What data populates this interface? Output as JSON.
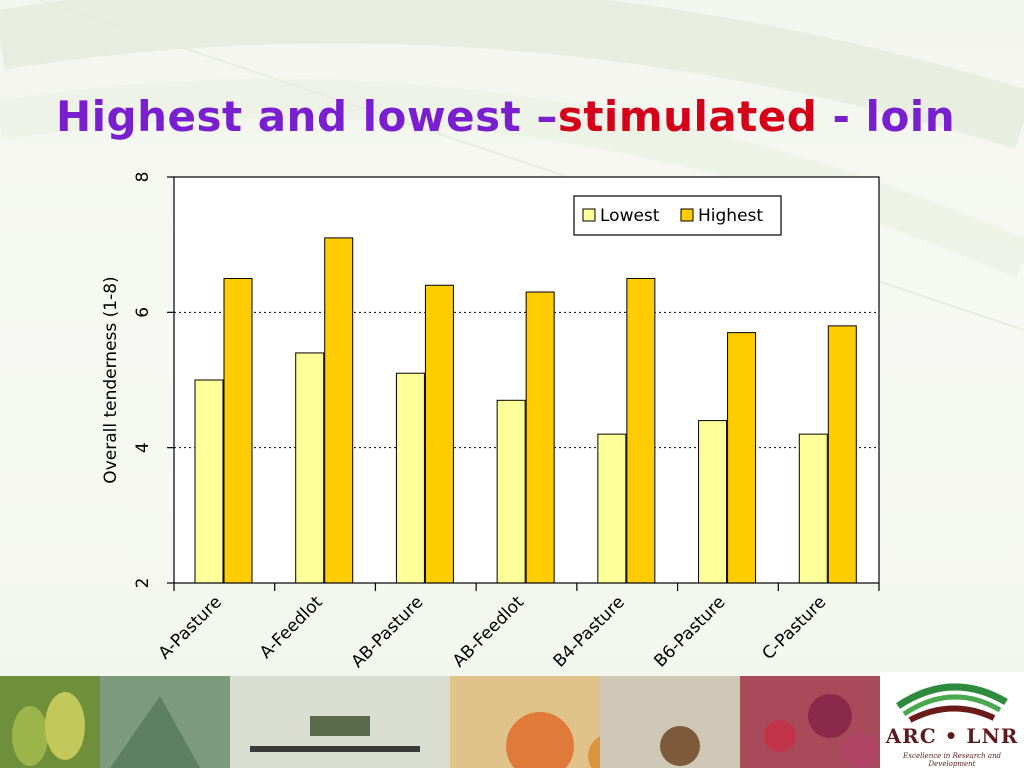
{
  "slide": {
    "title_part1": "Highest and lowest –",
    "title_part2": "stimulated",
    "title_part3": " - loin",
    "colors": {
      "title_purple": "#7a1fd0",
      "title_red": "#d4001a"
    }
  },
  "chart_data": {
    "type": "bar",
    "ylabel": "Overall tenderness (1-8)",
    "xlabel": "",
    "ylim": [
      2,
      8
    ],
    "yticks": [
      2,
      4,
      6,
      8
    ],
    "grid": "horizontal-dotted",
    "legend_position": "top-right",
    "categories": [
      "A-Pasture",
      "A-Feedlot",
      "AB-Pasture",
      "AB-Feedlot",
      "B4-Pasture",
      "B6-Pasture",
      "C-Pasture"
    ],
    "series": [
      {
        "name": "Lowest",
        "color": "#ffff99",
        "values": [
          5.0,
          5.4,
          5.1,
          4.7,
          4.2,
          4.4,
          4.2
        ]
      },
      {
        "name": "Highest",
        "color": "#ffcc00",
        "values": [
          6.5,
          7.1,
          6.4,
          6.3,
          6.5,
          5.7,
          5.8
        ]
      }
    ]
  },
  "logo": {
    "text": "ARC • LNR",
    "tagline": "Excellence in Research and Development",
    "colors": {
      "green": "#2e8b3e",
      "maroon": "#6b1a1a"
    }
  }
}
